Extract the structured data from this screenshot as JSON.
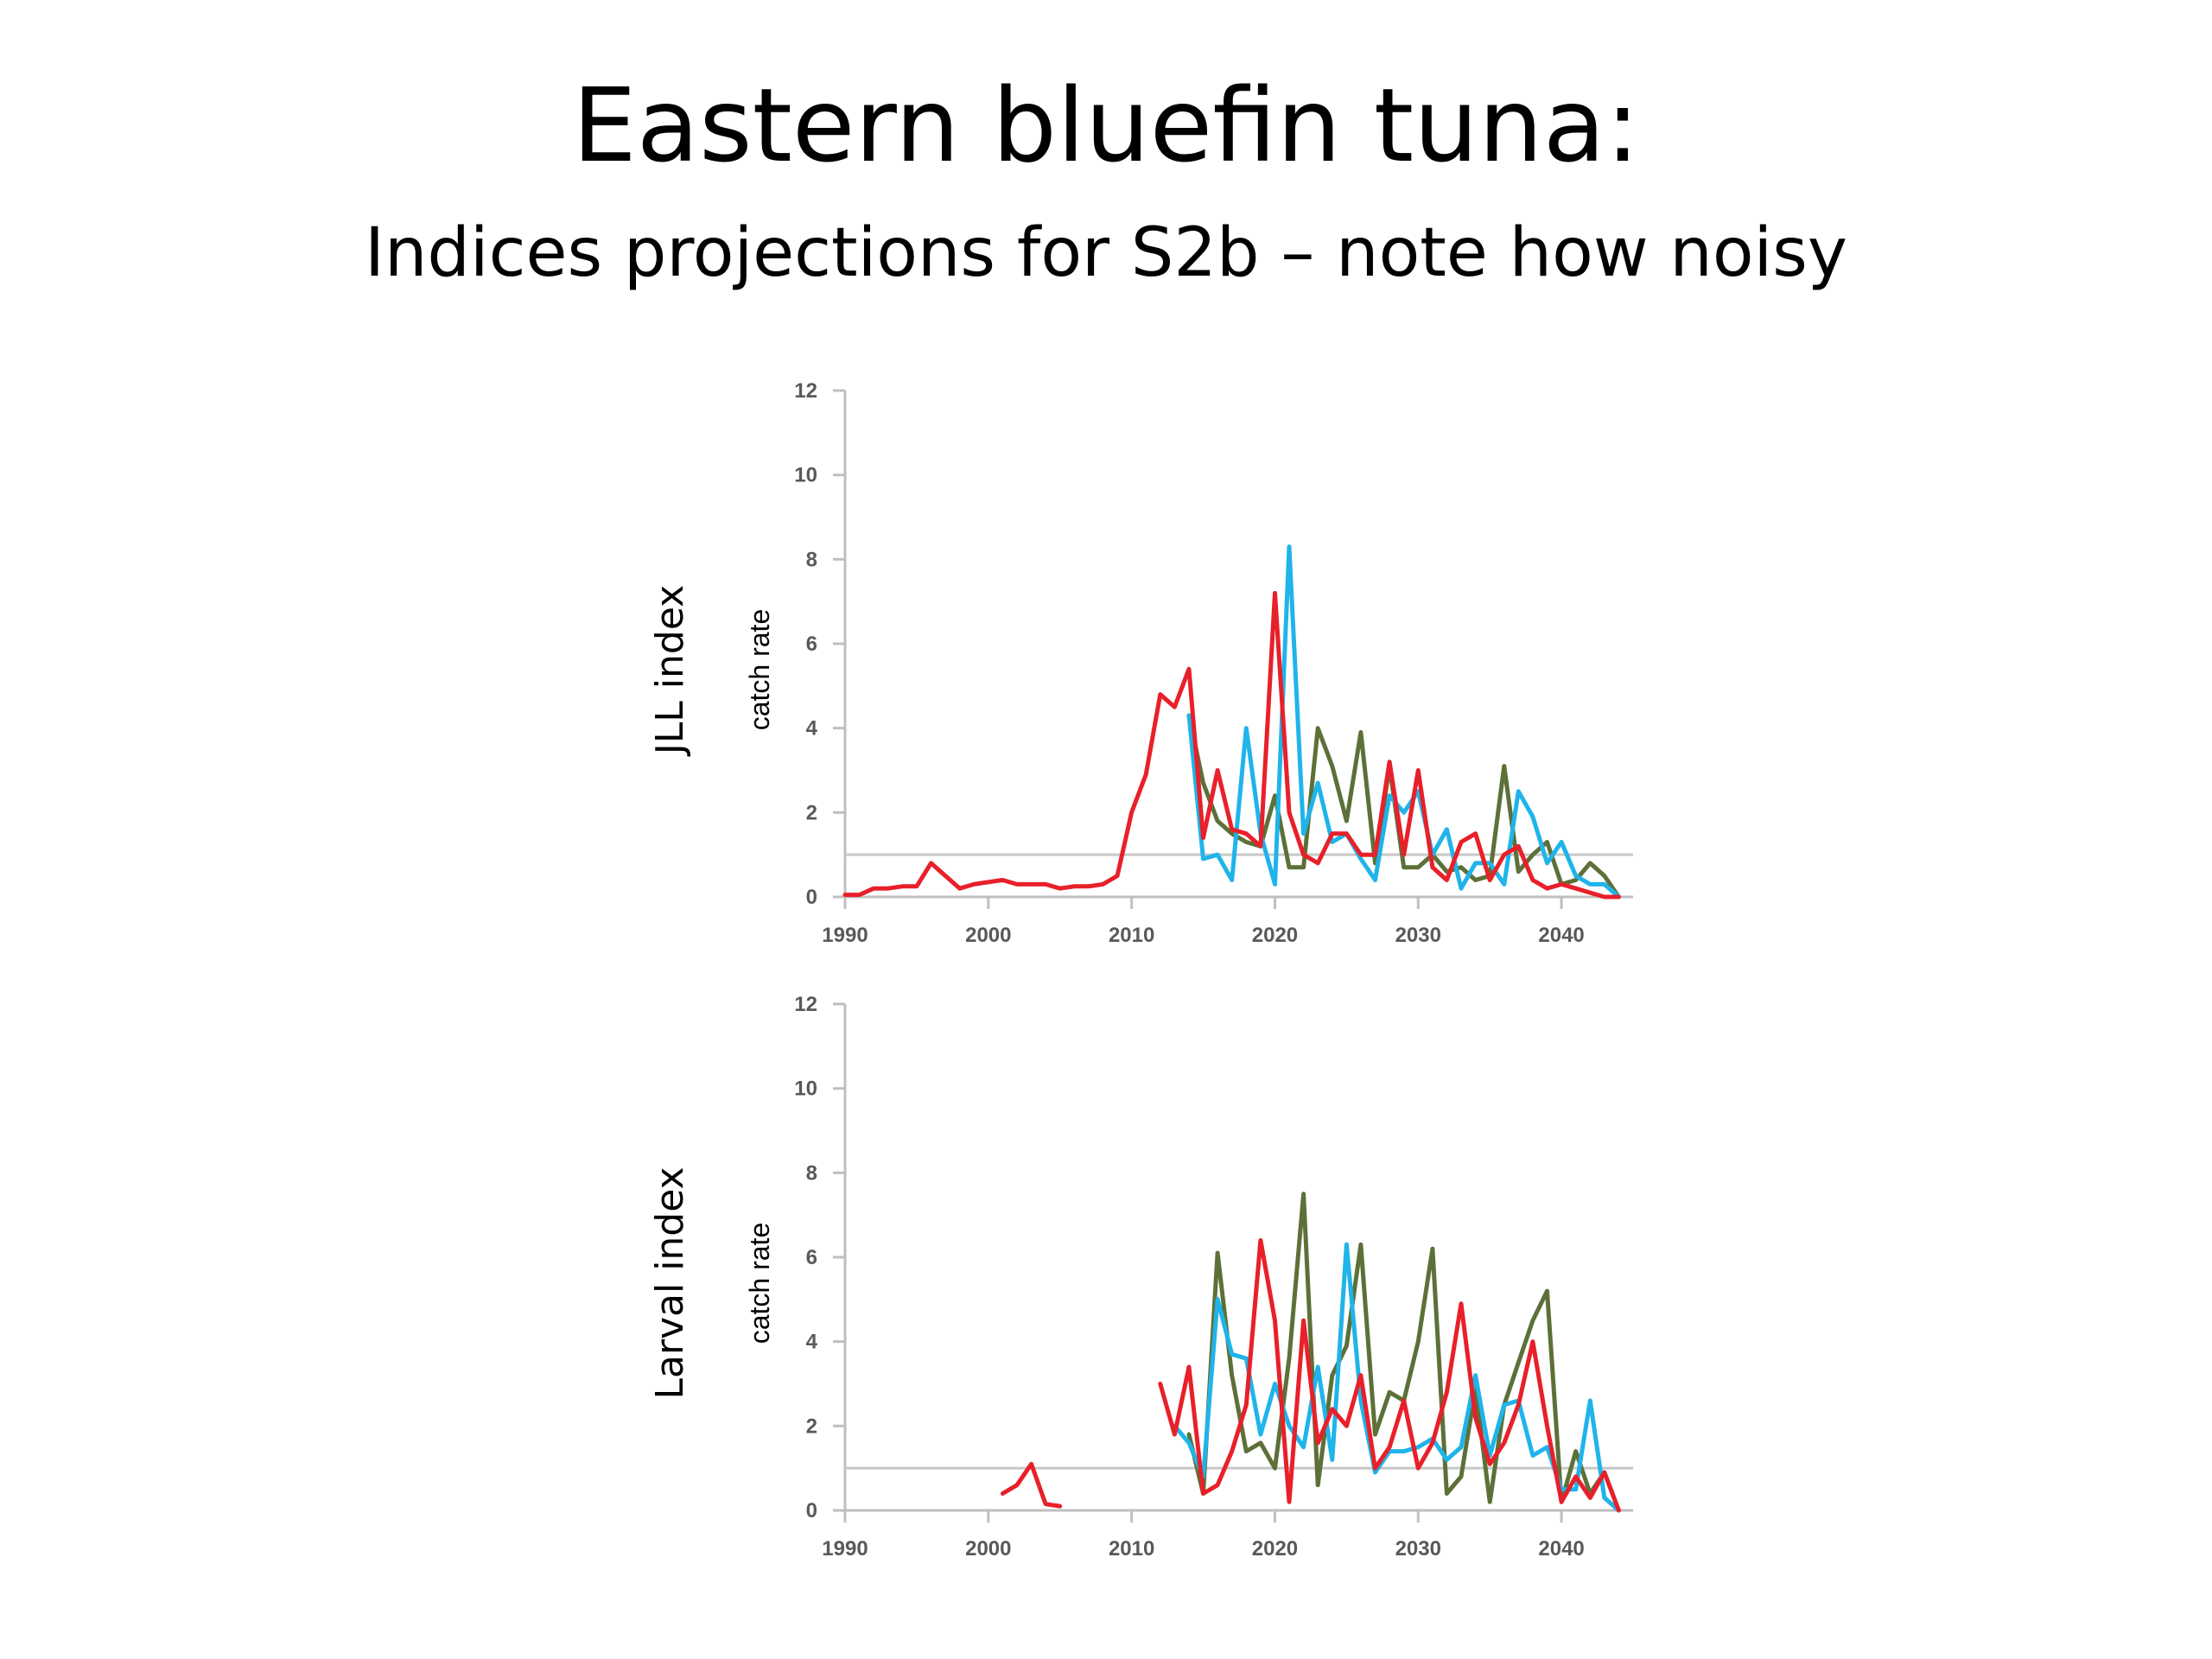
{
  "title": "Eastern bluefin tuna:",
  "subtitle": "Indices projections for S2b – note how noisy",
  "colors": {
    "red": "#e8202a",
    "blue": "#1fb4ea",
    "green": "#5c7038",
    "axis": "#bfbfbf",
    "reference": "#c8c8c8",
    "text": "#595959"
  },
  "chart_data": [
    {
      "type": "line",
      "panel_label": "JLL  index",
      "ylabel": "catch rate",
      "xlim": [
        1990,
        2045
      ],
      "ylim": [
        0,
        12
      ],
      "xticks": [
        1990,
        2000,
        2010,
        2020,
        2030,
        2040
      ],
      "yticks": [
        0,
        2,
        4,
        6,
        8,
        10,
        12
      ],
      "reference_line": 1,
      "series": [
        {
          "color": "green",
          "x": [
            2014,
            2015,
            2016,
            2017,
            2018,
            2019,
            2020,
            2021,
            2022,
            2023,
            2024,
            2025,
            2026,
            2027,
            2028,
            2029,
            2030,
            2031,
            2032,
            2033,
            2034,
            2035,
            2036,
            2037,
            2038,
            2039,
            2040,
            2041,
            2042,
            2043,
            2044
          ],
          "y": [
            4.3,
            2.7,
            1.8,
            1.5,
            1.3,
            1.2,
            2.4,
            0.7,
            0.7,
            4.0,
            3.1,
            1.8,
            3.9,
            0.8,
            3.1,
            0.7,
            0.7,
            1.0,
            0.6,
            0.7,
            0.4,
            0.5,
            3.1,
            0.6,
            1.0,
            1.3,
            0.3,
            0.4,
            0.8,
            0.5,
            0.0
          ]
        },
        {
          "color": "blue",
          "x": [
            2014,
            2015,
            2016,
            2017,
            2018,
            2019,
            2020,
            2021,
            2022,
            2023,
            2024,
            2025,
            2026,
            2027,
            2028,
            2029,
            2030,
            2031,
            2032,
            2033,
            2034,
            2035,
            2036,
            2037,
            2038,
            2039,
            2040,
            2041,
            2042,
            2043,
            2044
          ],
          "y": [
            4.3,
            0.9,
            1.0,
            0.4,
            4.0,
            1.5,
            0.3,
            8.3,
            1.5,
            2.7,
            1.3,
            1.5,
            0.9,
            0.4,
            2.4,
            2.0,
            2.5,
            1.0,
            1.6,
            0.2,
            0.8,
            0.8,
            0.3,
            2.5,
            1.9,
            0.8,
            1.3,
            0.5,
            0.3,
            0.3,
            0.0
          ]
        },
        {
          "color": "red",
          "x": [
            1990,
            1991,
            1992,
            1993,
            1994,
            1995,
            1996,
            1997,
            1998,
            1999,
            2000,
            2001,
            2002,
            2003,
            2004,
            2005,
            2006,
            2007,
            2008,
            2009,
            2010,
            2011,
            2012,
            2013,
            2014,
            2015,
            2016,
            2017,
            2018,
            2019,
            2020,
            2021,
            2022,
            2023,
            2024,
            2025,
            2026,
            2027,
            2028,
            2029,
            2030,
            2031,
            2032,
            2033,
            2034,
            2035,
            2036,
            2037,
            2038,
            2039,
            2040,
            2041,
            2042,
            2043,
            2044
          ],
          "y": [
            0.05,
            0.05,
            0.2,
            0.2,
            0.25,
            0.25,
            0.8,
            0.5,
            0.2,
            0.3,
            0.35,
            0.4,
            0.3,
            0.3,
            0.3,
            0.2,
            0.25,
            0.25,
            0.3,
            0.5,
            2.0,
            2.9,
            4.8,
            4.5,
            5.4,
            1.4,
            3.0,
            1.6,
            1.5,
            1.2,
            7.2,
            2.0,
            1.0,
            0.8,
            1.5,
            1.5,
            1.0,
            1.0,
            3.2,
            1.0,
            3.0,
            0.7,
            0.4,
            1.3,
            1.5,
            0.4,
            1.0,
            1.2,
            0.4,
            0.2,
            0.3,
            0.2,
            0.1,
            0.0,
            0.0
          ]
        }
      ]
    },
    {
      "type": "line",
      "panel_label": "Larval  index",
      "ylabel": "catch rate",
      "xlim": [
        1990,
        2045
      ],
      "ylim": [
        0,
        12
      ],
      "xticks": [
        1990,
        2000,
        2010,
        2020,
        2030,
        2040
      ],
      "yticks": [
        0,
        2,
        4,
        6,
        8,
        10,
        12
      ],
      "reference_line": 1,
      "series": [
        {
          "color": "green",
          "x": [
            2014,
            2015,
            2016,
            2017,
            2018,
            2019,
            2020,
            2021,
            2022,
            2023,
            2024,
            2025,
            2026,
            2027,
            2028,
            2029,
            2030,
            2031,
            2032,
            2033,
            2034,
            2035,
            2036,
            2037,
            2038,
            2039,
            2040,
            2041,
            2042,
            2043,
            2044
          ],
          "y": [
            1.8,
            0.4,
            6.1,
            3.2,
            1.4,
            1.6,
            1.0,
            3.6,
            7.5,
            0.6,
            3.2,
            3.9,
            6.3,
            1.8,
            2.8,
            2.6,
            4.0,
            6.2,
            0.4,
            0.8,
            2.9,
            0.2,
            2.5,
            3.5,
            4.5,
            5.2,
            0.2,
            1.4,
            0.4,
            0.9,
            0.0
          ]
        },
        {
          "color": "blue",
          "x": [
            2013,
            2014,
            2015,
            2016,
            2017,
            2018,
            2019,
            2020,
            2021,
            2022,
            2023,
            2024,
            2025,
            2026,
            2027,
            2028,
            2029,
            2030,
            2031,
            2032,
            2033,
            2034,
            2035,
            2036,
            2037,
            2038,
            2039,
            2040,
            2041,
            2042,
            2043,
            2044
          ],
          "y": [
            2.0,
            1.6,
            0.8,
            5.0,
            3.7,
            3.6,
            1.8,
            3.0,
            2.0,
            1.5,
            3.4,
            1.2,
            6.3,
            2.6,
            0.9,
            1.4,
            1.4,
            1.5,
            1.7,
            1.2,
            1.5,
            3.2,
            1.3,
            2.5,
            2.6,
            1.3,
            1.5,
            0.5,
            0.5,
            2.6,
            0.3,
            0.0
          ]
        },
        {
          "color": "red",
          "x": [
            2001,
            2002,
            2003,
            2004,
            2005
          ],
          "y": [
            0.4,
            0.6,
            1.1,
            0.15,
            0.1
          ]
        },
        {
          "color": "red",
          "x": [
            2012,
            2013,
            2014,
            2015,
            2016,
            2017,
            2018,
            2019,
            2020,
            2021,
            2022,
            2023,
            2024,
            2025,
            2026,
            2027,
            2028,
            2029,
            2030,
            2031,
            2032,
            2033,
            2034,
            2035,
            2036,
            2037,
            2038,
            2039,
            2040,
            2041,
            2042,
            2043,
            2044
          ],
          "y": [
            3.0,
            1.8,
            3.4,
            0.4,
            0.6,
            1.4,
            2.5,
            6.4,
            4.5,
            0.2,
            4.5,
            1.6,
            2.4,
            2.0,
            3.2,
            1.0,
            1.5,
            2.6,
            1.0,
            1.6,
            2.8,
            4.9,
            2.2,
            1.1,
            1.6,
            2.5,
            4.0,
            2.0,
            0.2,
            0.8,
            0.3,
            0.9,
            0.0
          ]
        }
      ]
    }
  ]
}
